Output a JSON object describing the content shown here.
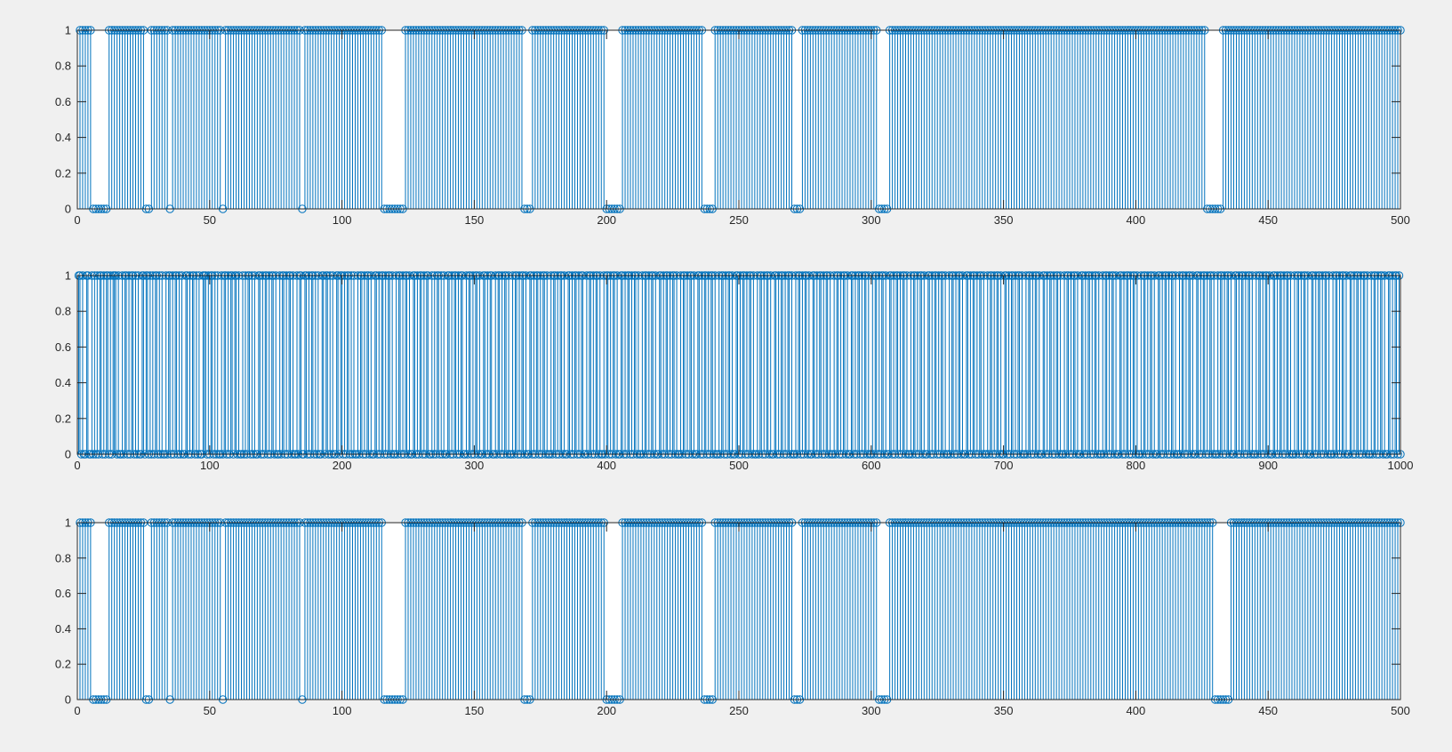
{
  "figure": {
    "background": "#f0f0f0",
    "axes_background": "#ffffff",
    "stem_color": "#0072bd",
    "axis_color": "#262626"
  },
  "chart_data": [
    {
      "type": "stem",
      "marker": "circle",
      "xlim": [
        0,
        500
      ],
      "ylim": [
        0,
        1
      ],
      "xticks": [
        "0",
        "50",
        "100",
        "150",
        "200",
        "250",
        "300",
        "350",
        "400",
        "450",
        "500"
      ],
      "yticks": [
        "0",
        "0.2",
        "0.4",
        "0.6",
        "0.8",
        "1"
      ],
      "grid": false,
      "x_start": 1,
      "bits": "1111100000011111111111111001111111011111111111111111110111111111111111111111111111110111111111111111111111111111111000000001111111111111111111111111111111111111111111110001111111111111111111111111111000000111111111111111111111111111111100001111111111111111111111111111110001111111111111111111111111111100001111111111111111111111111111111111111111111111111111111111111111111111111111111111111111111111111111111111111111111111110000001111111111111111111111111111111111111111111111111111111111111111111111111111111111111111111111111111111111111111111111111111111111111111111111111111111111111110000000"
    },
    {
      "type": "stem",
      "marker": "circle",
      "xlim": [
        0,
        1000
      ],
      "ylim": [
        0,
        1
      ],
      "xticks": [
        "0",
        "100",
        "200",
        "300",
        "400",
        "500",
        "600",
        "700",
        "800",
        "900",
        "1000"
      ],
      "yticks": [
        "0",
        "0.2",
        "0.4",
        "0.6",
        "0.8",
        "1"
      ],
      "grid": false,
      "x_start": 1,
      "bits": "1101001100101010110101101011101001011010110101001101101010110101001011010110101001101011010100111010110101001011010110110100101011010100110101101011010010110101101001011001101011010100110110101001101101011010100101101011010011010110101101001011010110100110101101011001010110101001101011010110010110101101001101011001011010110100101101011010011010110101101001011010110100110101101011001011010110100101101011010011010110101101001011010110100110101101011010010110101101001101011010110100101101011010011010110101101001011010110100110101101011010010110101101001101011010110100101101011010011010110101101001011010110100110101101011010010110101101001101011010110100101101011010011010110101101001011010110100110101101011010010110101101001101011010110100101101011010011010110101101001011010110100110101101011010010110101101001101011010110100101101011010011010110101101001011010110100110101101011010010110101101001101011010110100101101011010011010110101101001011010110100110101101011010010110101101001101011010110100101101011010011010110101101001011010110100110101101011010010110101101001101011010110100101101011010011010110101101001011010110"
    },
    {
      "type": "stem",
      "marker": "circle",
      "xlim": [
        0,
        500
      ],
      "ylim": [
        0,
        1
      ],
      "xticks": [
        "0",
        "50",
        "100",
        "150",
        "200",
        "250",
        "300",
        "350",
        "400",
        "450",
        "500"
      ],
      "yticks": [
        "0",
        "0.2",
        "0.4",
        "0.6",
        "0.8",
        "1"
      ],
      "grid": false,
      "x_start": 1,
      "bits": "1111100000011111111111111001111111011111111111111111110111111111111111111111111111110111111111111111111111111111111000000001111111111111111111111111111111111111111111110001111111111111111111111111111000000111111111111111111111111111111100001111111111111111111111111111110001111111111111111111111111111100001111111111111111111111111111111111111111111111111111111111111111111111111111111111111111111111111111111111111111111111111110000001111111111111111111111111111111111111111111111111111111111111111111111111111111111111111111111111111111111111111111111111111111111111111111111111111111111111110000000"
    }
  ]
}
